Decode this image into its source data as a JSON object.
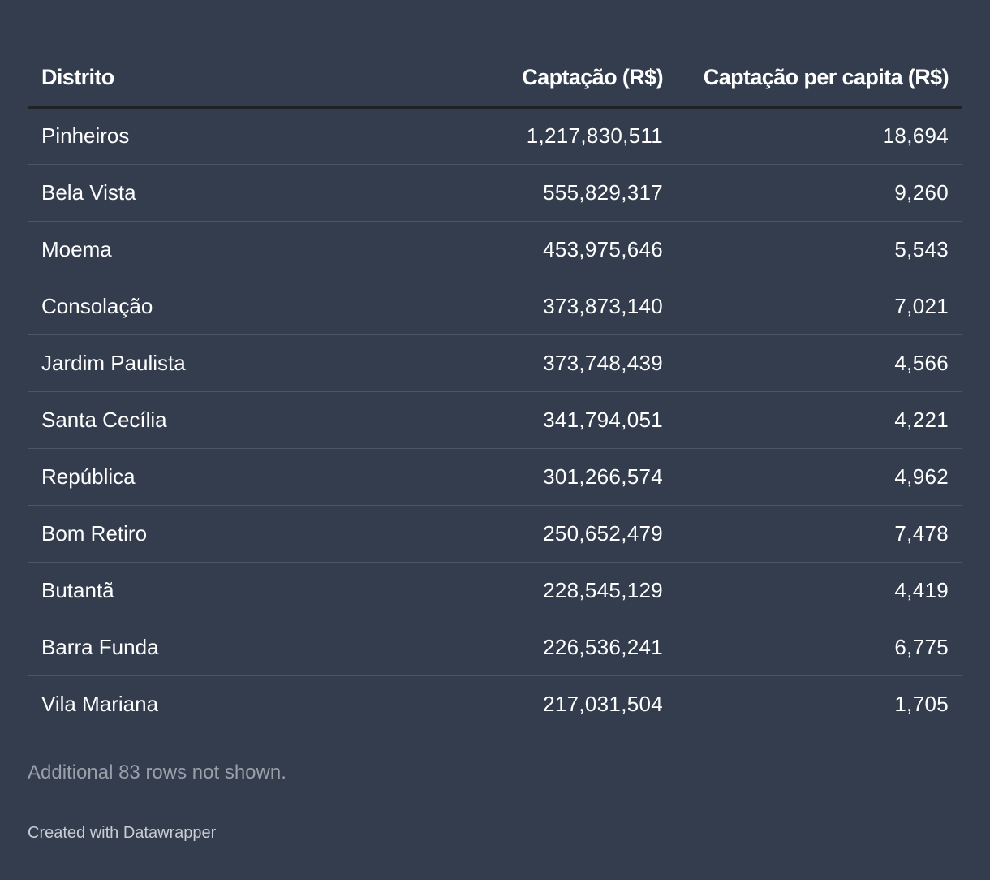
{
  "chart_data": {
    "type": "table",
    "columns": [
      "Distrito",
      "Captação (R$)",
      "Captação per capita (R$)"
    ],
    "rows": [
      {
        "distrito": "Pinheiros",
        "captacao": "1,217,830,511",
        "per_capita": "18,694"
      },
      {
        "distrito": "Bela Vista",
        "captacao": "555,829,317",
        "per_capita": "9,260"
      },
      {
        "distrito": "Moema",
        "captacao": "453,975,646",
        "per_capita": "5,543"
      },
      {
        "distrito": "Consolação",
        "captacao": "373,873,140",
        "per_capita": "7,021"
      },
      {
        "distrito": "Jardim Paulista",
        "captacao": "373,748,439",
        "per_capita": "4,566"
      },
      {
        "distrito": "Santa Cecília",
        "captacao": "341,794,051",
        "per_capita": "4,221"
      },
      {
        "distrito": "República",
        "captacao": "301,266,574",
        "per_capita": "4,962"
      },
      {
        "distrito": "Bom Retiro",
        "captacao": "250,652,479",
        "per_capita": "7,478"
      },
      {
        "distrito": "Butantã",
        "captacao": "228,545,129",
        "per_capita": "4,419"
      },
      {
        "distrito": "Barra Funda",
        "captacao": "226,536,241",
        "per_capita": "6,775"
      },
      {
        "distrito": "Vila Mariana",
        "captacao": "217,031,504",
        "per_capita": "1,705"
      }
    ]
  },
  "footnote": "Additional 83 rows not shown.",
  "credit": "Created with Datawrapper",
  "colors": {
    "background": "#333d4d",
    "text": "#ffffff",
    "header_rule": "#222222",
    "row_divider": "#4c5566",
    "footnote": "#9aa0aa",
    "credit": "#c9ccd2"
  }
}
